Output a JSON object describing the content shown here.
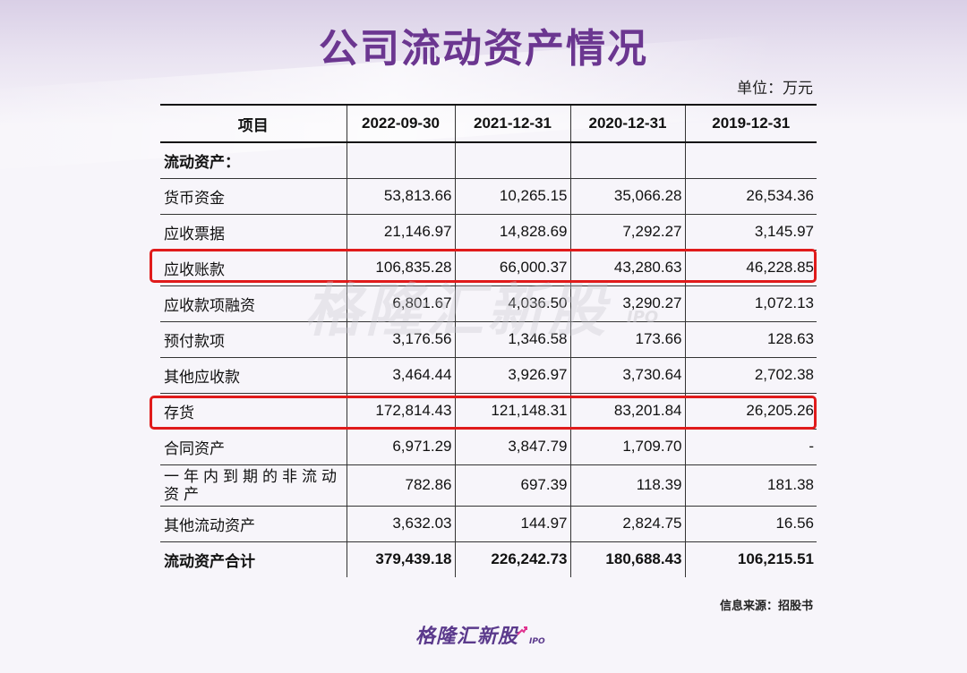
{
  "title": "公司流动资产情况",
  "unit_label": "单位：万元",
  "table": {
    "headers": [
      "项目",
      "2022-09-30",
      "2021-12-31",
      "2020-12-31",
      "2019-12-31"
    ],
    "rows": [
      {
        "label": "流动资产：",
        "values": [
          "",
          "",
          "",
          ""
        ],
        "highlighted": false
      },
      {
        "label": "货币资金",
        "values": [
          "53,813.66",
          "10,265.15",
          "35,066.28",
          "26,534.36"
        ],
        "highlighted": false
      },
      {
        "label": "应收票据",
        "values": [
          "21,146.97",
          "14,828.69",
          "7,292.27",
          "3,145.97"
        ],
        "highlighted": false
      },
      {
        "label": "应收账款",
        "values": [
          "106,835.28",
          "66,000.37",
          "43,280.63",
          "46,228.85"
        ],
        "highlighted": true
      },
      {
        "label": "应收款项融资",
        "values": [
          "6,801.67",
          "4,036.50",
          "3,290.27",
          "1,072.13"
        ],
        "highlighted": false
      },
      {
        "label": "预付款项",
        "values": [
          "3,176.56",
          "1,346.58",
          "173.66",
          "128.63"
        ],
        "highlighted": false
      },
      {
        "label": "其他应收款",
        "values": [
          "3,464.44",
          "3,926.97",
          "3,730.64",
          "2,702.38"
        ],
        "highlighted": false
      },
      {
        "label": "存货",
        "values": [
          "172,814.43",
          "121,148.31",
          "83,201.84",
          "26,205.26"
        ],
        "highlighted": true
      },
      {
        "label": "合同资产",
        "values": [
          "6,971.29",
          "3,847.79",
          "1,709.70",
          "-"
        ],
        "highlighted": false
      },
      {
        "label": "一年内到期的非流动资产",
        "values": [
          "782.86",
          "697.39",
          "118.39",
          "181.38"
        ],
        "highlighted": false
      },
      {
        "label": "其他流动资产",
        "values": [
          "3,632.03",
          "144.97",
          "2,824.75",
          "16.56"
        ],
        "highlighted": false
      },
      {
        "label": "流动资产合计",
        "values": [
          "379,439.18",
          "226,242.73",
          "180,688.43",
          "106,215.51"
        ],
        "highlighted": false
      }
    ]
  },
  "source_note": "信息来源：招股书",
  "watermark": {
    "text": "格隆汇新股",
    "sub": "IPO"
  },
  "logo": {
    "text": "格隆汇新股",
    "sub": "IPO"
  },
  "colors": {
    "title": "#6b3690",
    "highlight_border": "#e01b1b",
    "logo": "#5b3a8c"
  }
}
